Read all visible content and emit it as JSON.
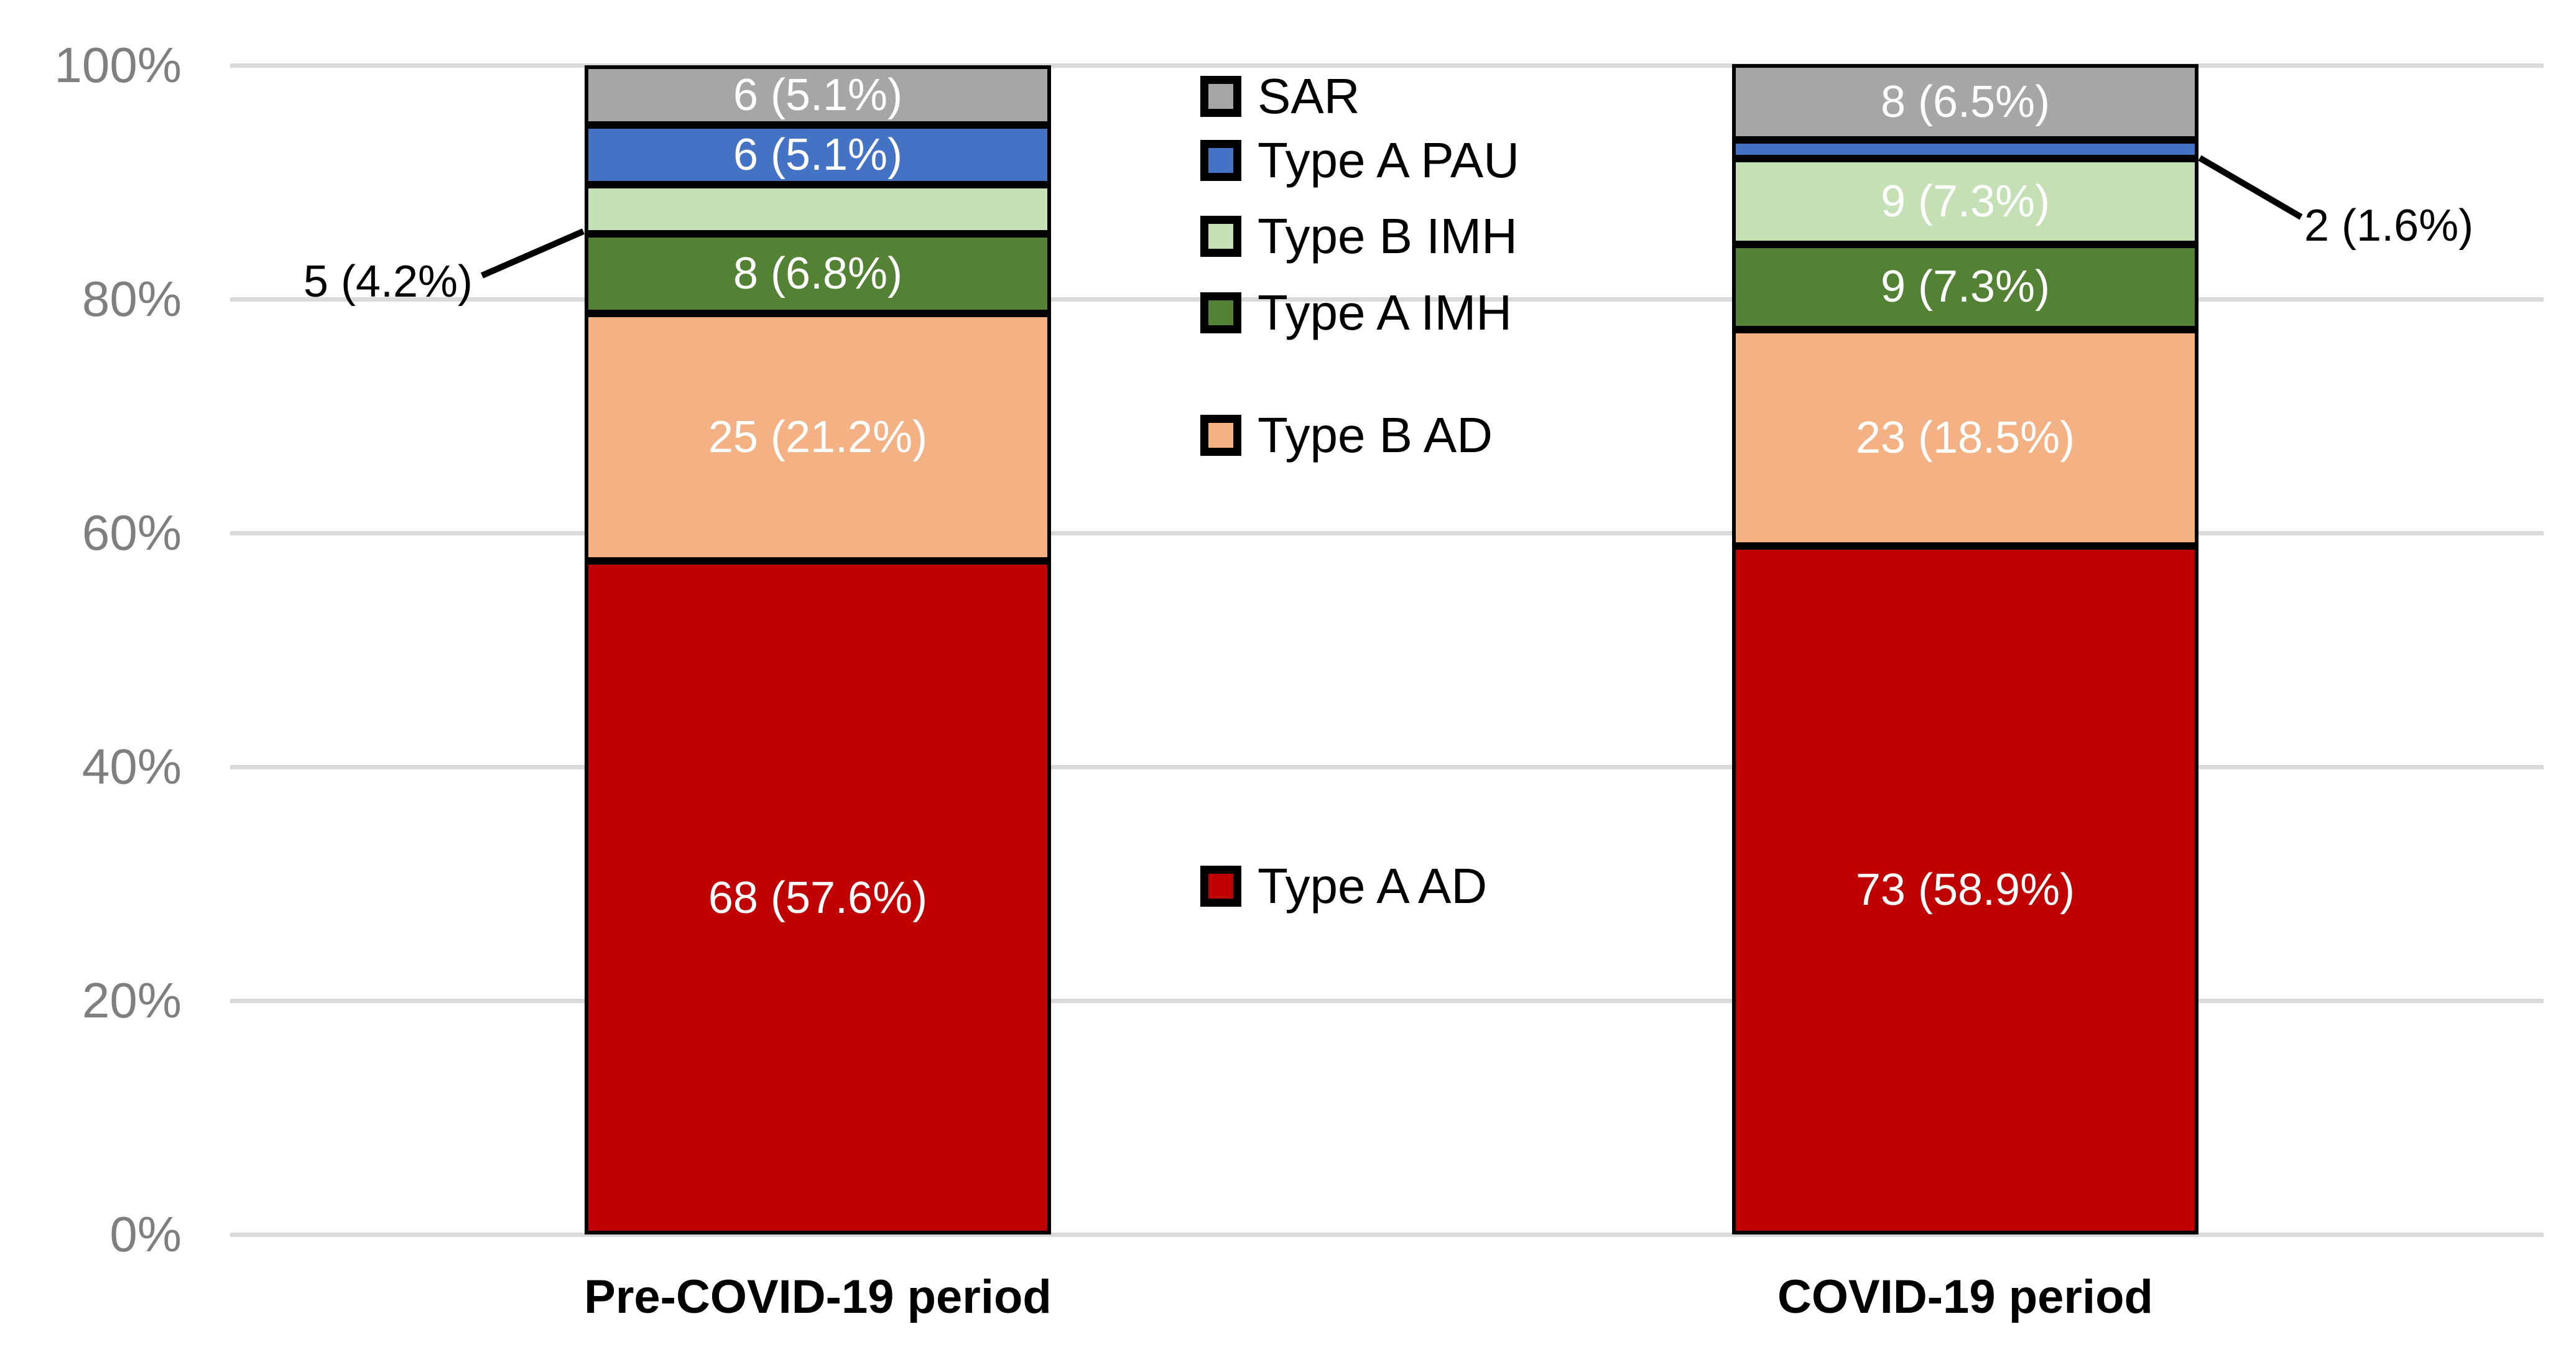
{
  "chart_data": {
    "type": "bar",
    "subtype": "stacked-100-percent-column",
    "categories": [
      "Pre-COVID-19 period",
      "COVID-19 period"
    ],
    "series": [
      {
        "name": "Type A AD",
        "color": "#C00000",
        "counts": [
          68,
          73
        ],
        "percents": [
          57.6,
          58.9
        ],
        "labels": [
          "68 (57.6%)",
          "73 (58.9%)"
        ],
        "label_in_bar": [
          true,
          true
        ]
      },
      {
        "name": "Type B AD",
        "color": "#F4B183",
        "counts": [
          25,
          23
        ],
        "percents": [
          21.2,
          18.5
        ],
        "labels": [
          "25 (21.2%)",
          "23 (18.5%)"
        ],
        "label_in_bar": [
          true,
          true
        ]
      },
      {
        "name": "Type A IMH",
        "color": "#548235",
        "counts": [
          8,
          9
        ],
        "percents": [
          6.8,
          7.3
        ],
        "labels": [
          "8 (6.8%)",
          "9 (7.3%)"
        ],
        "label_in_bar": [
          true,
          true
        ]
      },
      {
        "name": "Type B IMH",
        "color": "#C5E0B4",
        "counts": [
          5,
          9
        ],
        "percents": [
          4.2,
          7.3
        ],
        "labels": [
          "5 (4.2%)",
          "9 (7.3%)"
        ],
        "label_in_bar": [
          false,
          true
        ]
      },
      {
        "name": "Type A PAU",
        "color": "#4472C4",
        "counts": [
          6,
          2
        ],
        "percents": [
          5.1,
          1.6
        ],
        "labels": [
          "6 (5.1%)",
          "2 (1.6%)"
        ],
        "label_in_bar": [
          true,
          false
        ]
      },
      {
        "name": "SAR",
        "color": "#A6A6A6",
        "counts": [
          6,
          8
        ],
        "percents": [
          5.1,
          6.5
        ],
        "labels": [
          "6 (5.1%)",
          "8 (6.5%)"
        ],
        "label_in_bar": [
          true,
          true
        ]
      }
    ],
    "yticks": [
      "0%",
      "20%",
      "40%",
      "60%",
      "80%",
      "100%"
    ],
    "ylim": [
      0,
      100
    ],
    "gridlines": true,
    "legend_order_top_to_bottom": [
      "SAR",
      "Type A PAU",
      "Type B IMH",
      "Type A IMH",
      "Type B AD",
      "Type A AD"
    ],
    "callouts": [
      {
        "text": "5 (4.2%)",
        "category": "Pre-COVID-19 period",
        "series": "Type B IMH",
        "side": "left"
      },
      {
        "text": "2 (1.6%)",
        "category": "COVID-19 period",
        "series": "Type A PAU",
        "side": "right"
      }
    ],
    "colors": {
      "gridline": "#D9D9D9",
      "axis_label": "#7F7F7F",
      "segment_border": "#000000",
      "segment_label_text": "#FFFFFF"
    }
  }
}
